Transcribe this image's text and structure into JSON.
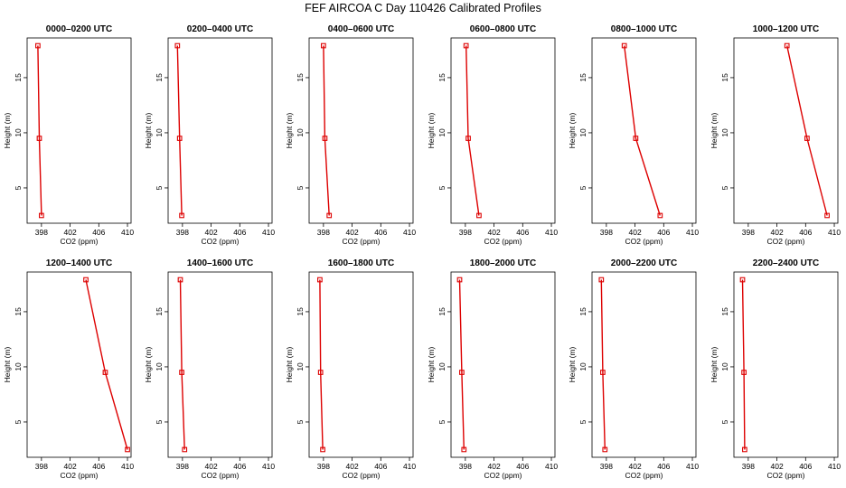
{
  "figure": {
    "title": "FEF AIRCOA C  Day 110426  Calibrated Profiles"
  },
  "colors": {
    "series": "#dd0000",
    "axes": "#000000",
    "background": "#ffffff"
  },
  "chart_data": [
    {
      "type": "line",
      "title": "0000–0200 UTC",
      "xlabel": "CO2 (ppm)",
      "ylabel": "Height (m)",
      "xlim": [
        396,
        410.5
      ],
      "ylim": [
        1.8,
        18.6
      ],
      "xticks": [
        398,
        402,
        406,
        410
      ],
      "yticks": [
        5,
        10,
        15
      ],
      "series": [
        {
          "x": [
            397.5,
            397.7,
            398.0
          ],
          "y": [
            17.9,
            9.5,
            2.5
          ]
        }
      ]
    },
    {
      "type": "line",
      "title": "0200–0400 UTC",
      "xlabel": "CO2 (ppm)",
      "ylabel": "Height (m)",
      "xlim": [
        396,
        410.5
      ],
      "ylim": [
        1.8,
        18.6
      ],
      "xticks": [
        398,
        402,
        406,
        410
      ],
      "yticks": [
        5,
        10,
        15
      ],
      "series": [
        {
          "x": [
            397.3,
            397.6,
            397.9
          ],
          "y": [
            17.9,
            9.5,
            2.5
          ]
        }
      ]
    },
    {
      "type": "line",
      "title": "0400–0600 UTC",
      "xlabel": "CO2 (ppm)",
      "ylabel": "Height (m)",
      "xlim": [
        396,
        410.5
      ],
      "ylim": [
        1.8,
        18.6
      ],
      "xticks": [
        398,
        402,
        406,
        410
      ],
      "yticks": [
        5,
        10,
        15
      ],
      "series": [
        {
          "x": [
            398.0,
            398.2,
            398.8
          ],
          "y": [
            17.9,
            9.5,
            2.5
          ]
        }
      ]
    },
    {
      "type": "line",
      "title": "0600–0800 UTC",
      "xlabel": "CO2 (ppm)",
      "ylabel": "Height (m)",
      "xlim": [
        396,
        410.5
      ],
      "ylim": [
        1.8,
        18.6
      ],
      "xticks": [
        398,
        402,
        406,
        410
      ],
      "yticks": [
        5,
        10,
        15
      ],
      "series": [
        {
          "x": [
            398.1,
            398.4,
            399.9
          ],
          "y": [
            17.9,
            9.5,
            2.5
          ]
        }
      ]
    },
    {
      "type": "line",
      "title": "0800–1000 UTC",
      "xlabel": "CO2 (ppm)",
      "ylabel": "Height (m)",
      "xlim": [
        396,
        410.5
      ],
      "ylim": [
        1.8,
        18.6
      ],
      "xticks": [
        398,
        402,
        406,
        410
      ],
      "yticks": [
        5,
        10,
        15
      ],
      "series": [
        {
          "x": [
            400.5,
            402.1,
            405.5
          ],
          "y": [
            17.9,
            9.5,
            2.5
          ]
        }
      ]
    },
    {
      "type": "line",
      "title": "1000–1200 UTC",
      "xlabel": "CO2 (ppm)",
      "ylabel": "Height (m)",
      "xlim": [
        396,
        410.5
      ],
      "ylim": [
        1.8,
        18.6
      ],
      "xticks": [
        398,
        402,
        406,
        410
      ],
      "yticks": [
        5,
        10,
        15
      ],
      "series": [
        {
          "x": [
            403.4,
            406.2,
            409.0
          ],
          "y": [
            17.9,
            9.5,
            2.5
          ]
        }
      ]
    },
    {
      "type": "line",
      "title": "1200–1400 UTC",
      "xlabel": "CO2 (ppm)",
      "ylabel": "Height (m)",
      "xlim": [
        396,
        410.5
      ],
      "ylim": [
        1.8,
        18.6
      ],
      "xticks": [
        398,
        402,
        406,
        410
      ],
      "yticks": [
        5,
        10,
        15
      ],
      "series": [
        {
          "x": [
            404.2,
            406.9,
            410.0
          ],
          "y": [
            17.9,
            9.5,
            2.5
          ]
        }
      ]
    },
    {
      "type": "line",
      "title": "1400–1600 UTC",
      "xlabel": "CO2 (ppm)",
      "ylabel": "Height (m)",
      "xlim": [
        396,
        410.5
      ],
      "ylim": [
        1.8,
        18.6
      ],
      "xticks": [
        398,
        402,
        406,
        410
      ],
      "yticks": [
        5,
        10,
        15
      ],
      "series": [
        {
          "x": [
            397.7,
            397.9,
            398.3
          ],
          "y": [
            17.9,
            9.5,
            2.5
          ]
        }
      ]
    },
    {
      "type": "line",
      "title": "1600–1800 UTC",
      "xlabel": "CO2 (ppm)",
      "ylabel": "Height (m)",
      "xlim": [
        396,
        410.5
      ],
      "ylim": [
        1.8,
        18.6
      ],
      "xticks": [
        398,
        402,
        406,
        410
      ],
      "yticks": [
        5,
        10,
        15
      ],
      "series": [
        {
          "x": [
            397.5,
            397.6,
            397.9
          ],
          "y": [
            17.9,
            9.5,
            2.5
          ]
        }
      ]
    },
    {
      "type": "line",
      "title": "1800–2000 UTC",
      "xlabel": "CO2 (ppm)",
      "ylabel": "Height (m)",
      "xlim": [
        396,
        410.5
      ],
      "ylim": [
        1.8,
        18.6
      ],
      "xticks": [
        398,
        402,
        406,
        410
      ],
      "yticks": [
        5,
        10,
        15
      ],
      "series": [
        {
          "x": [
            397.2,
            397.5,
            397.8
          ],
          "y": [
            17.9,
            9.5,
            2.5
          ]
        }
      ]
    },
    {
      "type": "line",
      "title": "2000–2200 UTC",
      "xlabel": "CO2 (ppm)",
      "ylabel": "Height (m)",
      "xlim": [
        396,
        410.5
      ],
      "ylim": [
        1.8,
        18.6
      ],
      "xticks": [
        398,
        402,
        406,
        410
      ],
      "yticks": [
        5,
        10,
        15
      ],
      "series": [
        {
          "x": [
            397.3,
            397.5,
            397.8
          ],
          "y": [
            17.9,
            9.5,
            2.5
          ]
        }
      ]
    },
    {
      "type": "line",
      "title": "2200–2400 UTC",
      "xlabel": "CO2 (ppm)",
      "ylabel": "Height (m)",
      "xlim": [
        396,
        410.5
      ],
      "ylim": [
        1.8,
        18.6
      ],
      "xticks": [
        398,
        402,
        406,
        410
      ],
      "yticks": [
        5,
        10,
        15
      ],
      "series": [
        {
          "x": [
            397.2,
            397.4,
            397.5
          ],
          "y": [
            17.9,
            9.5,
            2.5
          ]
        }
      ]
    }
  ]
}
